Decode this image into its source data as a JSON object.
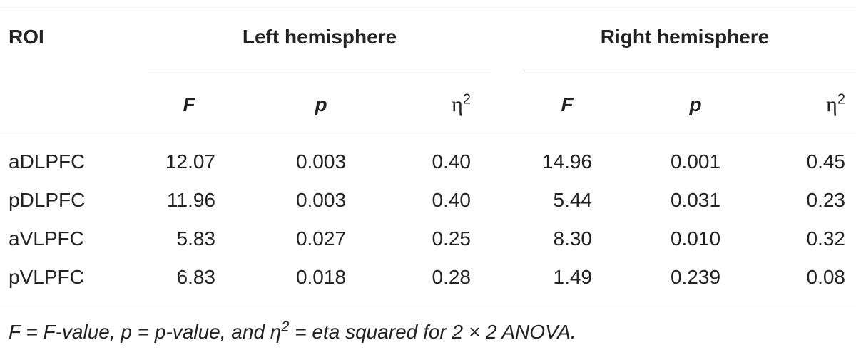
{
  "table": {
    "header": {
      "roi": "ROI",
      "groups": [
        "Left hemisphere",
        "Right hemisphere"
      ]
    },
    "subheaders": [
      {
        "symbol": "F"
      },
      {
        "symbol": "p"
      },
      {
        "symbol": "η",
        "sup": "2"
      },
      {
        "symbol": "F"
      },
      {
        "symbol": "p"
      },
      {
        "symbol": "η",
        "sup": "2"
      }
    ],
    "rows": [
      [
        "aDLPFC",
        "12.07",
        "0.003",
        "0.40",
        "14.96",
        "0.001",
        "0.45"
      ],
      [
        "pDLPFC",
        "11.96",
        "0.003",
        "0.40",
        "5.44",
        "0.031",
        "0.23"
      ],
      [
        "aVLPFC",
        "5.83",
        "0.027",
        "0.25",
        "8.30",
        "0.010",
        "0.32"
      ],
      [
        "pVLPFC",
        "6.83",
        "0.018",
        "0.28",
        "1.49",
        "0.239",
        "0.08"
      ]
    ],
    "footnote": {
      "before": "F = F-value, p = p-value, and η",
      "sup": "2",
      "after": " = eta squared for 2 × 2 ANOVA."
    }
  }
}
